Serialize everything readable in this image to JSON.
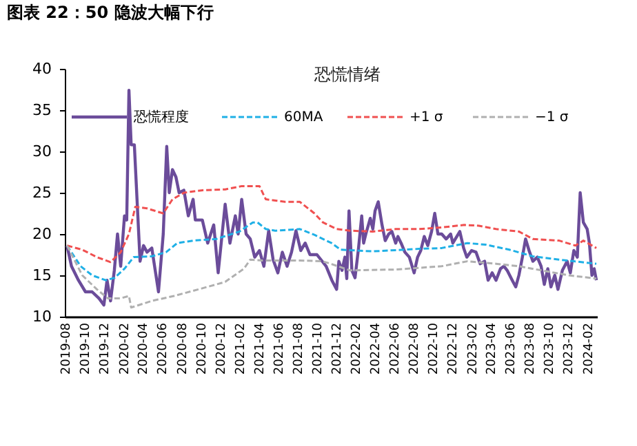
{
  "chart_data": {
    "type": "line",
    "title": "图表 22：50 隐波大幅下行",
    "legend_title": "恐慌情绪",
    "legend": "top",
    "grid": false,
    "marker": "none",
    "xlim": [
      "2019-08-01",
      "2024-03-03"
    ],
    "ylim": [
      10,
      40
    ],
    "yticks": [
      10,
      15,
      20,
      25,
      30,
      35,
      40
    ],
    "xticks": [
      "2019-08",
      "2019-10",
      "2019-12",
      "2020-02",
      "2020-04",
      "2020-06",
      "2020-08",
      "2020-10",
      "2020-12",
      "2021-02",
      "2021-04",
      "2021-06",
      "2021-08",
      "2021-10",
      "2021-12",
      "2022-02",
      "2022-04",
      "2022-06",
      "2022-08",
      "2022-10",
      "2022-12",
      "2023-02",
      "2023-04",
      "2023-06",
      "2023-08",
      "2023-10",
      "2023-12",
      "2024-02"
    ],
    "series": [
      {
        "name": "恐慌程度",
        "color": "#6b4c9a",
        "line_style": "solid",
        "x": [
          "2019-08-08",
          "2019-08-22",
          "2019-09-13",
          "2019-10-05",
          "2019-10-26",
          "2019-11-17",
          "2019-12-02",
          "2019-12-12",
          "2019-12-23",
          "2020-01-04",
          "2020-01-14",
          "2020-01-24",
          "2020-02-05",
          "2020-02-12",
          "2020-02-19",
          "2020-02-26",
          "2020-03-07",
          "2020-03-18",
          "2020-03-25",
          "2020-04-05",
          "2020-04-16",
          "2020-05-01",
          "2020-05-22",
          "2020-06-06",
          "2020-06-17",
          "2020-06-25",
          "2020-07-05",
          "2020-07-16",
          "2020-07-26",
          "2020-08-10",
          "2020-08-24",
          "2020-09-08",
          "2020-09-15",
          "2020-10-07",
          "2020-10-24",
          "2020-11-12",
          "2020-11-26",
          "2020-12-18",
          "2021-01-02",
          "2021-01-19",
          "2021-01-28",
          "2021-02-08",
          "2021-02-22",
          "2021-03-07",
          "2021-03-21",
          "2021-04-05",
          "2021-04-19",
          "2021-05-04",
          "2021-05-18",
          "2021-06-02",
          "2021-06-16",
          "2021-07-01",
          "2021-07-15",
          "2021-07-29",
          "2021-08-13",
          "2021-08-27",
          "2021-09-11",
          "2021-10-03",
          "2021-11-01",
          "2021-11-19",
          "2021-12-04",
          "2021-12-11",
          "2021-12-21",
          "2021-12-30",
          "2022-01-05",
          "2022-01-12",
          "2022-01-21",
          "2022-01-31",
          "2022-02-11",
          "2022-02-21",
          "2022-02-27",
          "2022-03-06",
          "2022-03-20",
          "2022-03-28",
          "2022-04-04",
          "2022-04-14",
          "2022-04-26",
          "2022-05-06",
          "2022-05-17",
          "2022-05-27",
          "2022-06-08",
          "2022-06-15",
          "2022-06-25",
          "2022-07-07",
          "2022-07-21",
          "2022-08-05",
          "2022-08-16",
          "2022-08-26",
          "2022-09-06",
          "2022-09-17",
          "2022-09-29",
          "2022-10-09",
          "2022-10-19",
          "2022-10-31",
          "2022-11-14",
          "2022-11-28",
          "2022-12-05",
          "2022-12-27",
          "2023-01-08",
          "2023-01-18",
          "2023-02-02",
          "2023-02-16",
          "2023-03-01",
          "2023-03-15",
          "2023-03-26",
          "2023-04-08",
          "2023-04-20",
          "2023-05-04",
          "2023-05-15",
          "2023-05-25",
          "2023-06-10",
          "2023-06-21",
          "2023-07-01",
          "2023-07-12",
          "2023-07-22",
          "2023-08-02",
          "2023-08-14",
          "2023-08-28",
          "2023-09-09",
          "2023-09-19",
          "2023-09-30",
          "2023-10-10",
          "2023-10-22",
          "2023-11-01",
          "2023-11-15",
          "2023-11-30",
          "2023-12-10",
          "2023-12-21",
          "2024-01-01",
          "2024-01-10",
          "2024-01-20",
          "2024-02-01",
          "2024-02-08",
          "2024-02-16",
          "2024-02-23",
          "2024-03-01"
        ],
        "values": [
          18.6,
          16.1,
          14.4,
          13.0,
          13.0,
          12.2,
          11.4,
          14.4,
          11.9,
          15.6,
          20.0,
          16.1,
          22.2,
          21.7,
          37.4,
          30.8,
          30.8,
          22.2,
          16.7,
          18.6,
          17.8,
          18.3,
          13.0,
          20.0,
          30.6,
          25.0,
          27.8,
          26.9,
          25.0,
          25.3,
          22.2,
          24.2,
          21.7,
          21.7,
          18.9,
          21.1,
          15.3,
          23.6,
          18.9,
          22.2,
          20.0,
          24.2,
          20.0,
          19.4,
          17.2,
          18.0,
          16.1,
          20.4,
          16.9,
          15.3,
          17.8,
          16.1,
          17.8,
          20.4,
          18.0,
          18.9,
          17.5,
          17.5,
          16.1,
          14.4,
          13.3,
          16.7,
          15.6,
          17.2,
          14.6,
          22.8,
          15.6,
          14.7,
          18.3,
          22.2,
          18.9,
          20.0,
          21.9,
          20.6,
          22.8,
          23.9,
          21.1,
          19.2,
          20.0,
          20.3,
          18.9,
          19.7,
          18.9,
          17.8,
          17.2,
          15.3,
          17.2,
          18.0,
          19.7,
          18.6,
          20.3,
          22.5,
          20.0,
          20.0,
          19.4,
          20.0,
          18.9,
          20.3,
          18.3,
          17.2,
          18.0,
          17.8,
          16.4,
          16.7,
          14.4,
          15.3,
          14.4,
          15.8,
          16.1,
          15.6,
          14.4,
          13.6,
          15.0,
          17.2,
          19.4,
          18.0,
          16.7,
          17.2,
          16.1,
          13.9,
          15.8,
          13.6,
          15.0,
          13.3,
          15.6,
          16.7,
          15.3,
          18.0,
          17.2,
          25.0,
          21.4,
          20.6,
          18.9,
          15.0,
          15.8,
          14.4
        ]
      },
      {
        "name": "60MA",
        "color": "#1fb0e6",
        "line_style": "dashed",
        "x": [
          "2019-08-08",
          "2019-09-20",
          "2019-10-26",
          "2019-12-08",
          "2020-01-05",
          "2020-02-05",
          "2020-03-05",
          "2020-05-01",
          "2020-06-15",
          "2020-07-20",
          "2020-09-08",
          "2020-11-20",
          "2021-02-01",
          "2021-03-15",
          "2021-03-30",
          "2021-04-25",
          "2021-05-25",
          "2021-08-10",
          "2021-09-25",
          "2021-11-18",
          "2021-12-17",
          "2022-03-28",
          "2022-08-20",
          "2022-10-31",
          "2023-01-20",
          "2023-03-20",
          "2023-06-01",
          "2023-08-14",
          "2023-11-05",
          "2023-12-21",
          "2024-03-01"
        ],
        "values": [
          18.6,
          16.1,
          15.0,
          14.4,
          14.7,
          15.8,
          17.2,
          17.3,
          17.8,
          18.9,
          19.2,
          19.4,
          20.3,
          21.4,
          21.4,
          20.6,
          20.4,
          20.6,
          19.9,
          18.9,
          18.1,
          17.9,
          18.2,
          18.3,
          18.9,
          18.7,
          18.1,
          17.3,
          16.9,
          16.7,
          16.4
        ]
      },
      {
        "name": "+1 σ",
        "color": "#f05050",
        "line_style": "dashed",
        "x": [
          "2019-08-08",
          "2019-09-25",
          "2019-11-10",
          "2019-12-23",
          "2020-01-24",
          "2020-02-19",
          "2020-03-10",
          "2020-04-16",
          "2020-06-06",
          "2020-07-05",
          "2020-08-10",
          "2020-10-07",
          "2020-12-18",
          "2021-02-08",
          "2021-04-05",
          "2021-04-25",
          "2021-06-25",
          "2021-08-10",
          "2021-09-25",
          "2021-10-22",
          "2021-12-04",
          "2022-01-15",
          "2022-03-28",
          "2022-06-08",
          "2022-08-20",
          "2022-10-31",
          "2023-01-10",
          "2023-02-25",
          "2023-04-20",
          "2023-07-01",
          "2023-08-14",
          "2023-11-05",
          "2023-12-26",
          "2024-01-20",
          "2024-03-01"
        ],
        "values": [
          18.6,
          18.1,
          17.2,
          16.6,
          17.8,
          20.0,
          23.3,
          23.1,
          22.5,
          24.2,
          25.0,
          25.3,
          25.4,
          25.8,
          25.8,
          24.2,
          23.9,
          23.9,
          22.5,
          21.4,
          20.6,
          20.4,
          20.3,
          20.6,
          20.6,
          20.8,
          21.1,
          21.0,
          20.6,
          20.3,
          19.4,
          19.2,
          18.6,
          19.2,
          18.3
        ]
      },
      {
        "name": "−1 σ",
        "color": "#b0b0b0",
        "line_style": "dashed",
        "x": [
          "2019-08-08",
          "2019-09-25",
          "2019-11-10",
          "2019-12-15",
          "2020-01-22",
          "2020-02-19",
          "2020-02-26",
          "2020-05-01",
          "2020-07-10",
          "2020-09-25",
          "2020-12-18",
          "2021-02-15",
          "2021-03-07",
          "2021-04-15",
          "2021-05-25",
          "2021-08-10",
          "2021-10-20",
          "2021-11-15",
          "2022-01-15",
          "2022-06-08",
          "2022-10-31",
          "2023-01-20",
          "2023-04-20",
          "2023-07-01",
          "2023-09-10",
          "2023-12-05",
          "2024-03-01"
        ],
        "values": [
          18.6,
          15.0,
          13.3,
          12.2,
          12.2,
          12.5,
          11.1,
          11.9,
          12.5,
          13.3,
          14.2,
          15.8,
          16.9,
          16.8,
          16.8,
          16.8,
          16.7,
          16.4,
          15.6,
          15.7,
          16.1,
          16.7,
          16.4,
          16.1,
          15.6,
          15.0,
          14.6
        ]
      }
    ]
  }
}
